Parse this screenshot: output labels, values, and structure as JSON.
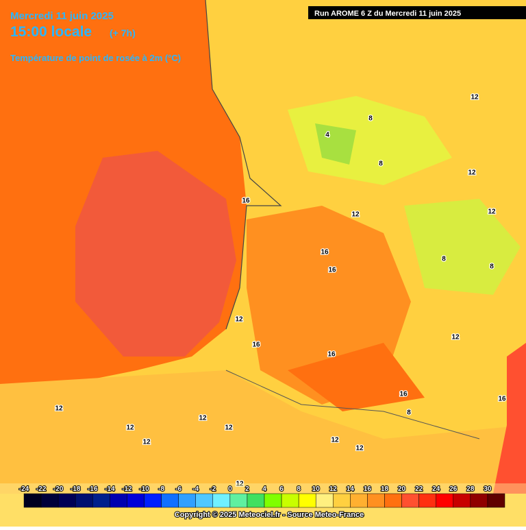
{
  "header": {
    "date": "Mercredi 11 juin 2025",
    "time": "15:00 locale",
    "offset": "(+ 7h)",
    "variable": "Température de point de rosée à 2m (°C)",
    "run": "Run AROME 6 Z du Mercredi 11 juin 2025"
  },
  "contour_labels": [
    8,
    4,
    8,
    12,
    12,
    12,
    16,
    12,
    16,
    16,
    8,
    8,
    12,
    16,
    16,
    12,
    16,
    16,
    12,
    12,
    12,
    12,
    12,
    8,
    12,
    12,
    12
  ],
  "colorbar": {
    "ticks": [
      -24,
      -22,
      -20,
      -18,
      -16,
      -14,
      -12,
      -10,
      -8,
      -6,
      -4,
      -2,
      0,
      2,
      4,
      6,
      8,
      10,
      12,
      14,
      16,
      18,
      20,
      22,
      24,
      26,
      28,
      30
    ],
    "colors": [
      "#000020",
      "#00003a",
      "#000055",
      "#001070",
      "#00208c",
      "#0000b0",
      "#0000d8",
      "#0020ff",
      "#1070ff",
      "#30a0ff",
      "#50c8ff",
      "#70f0ff",
      "#60f0a0",
      "#40e060",
      "#80ff00",
      "#c8ff00",
      "#ffff00",
      "#fff080",
      "#ffd040",
      "#ffb030",
      "#ff9020",
      "#ff7010",
      "#ff5030",
      "#ff3010",
      "#ff0000",
      "#c80000",
      "#900000",
      "#600000"
    ]
  },
  "footer": {
    "copyright": "Copyright © 2025 Meteociel.fr - Source Meteo-France"
  }
}
